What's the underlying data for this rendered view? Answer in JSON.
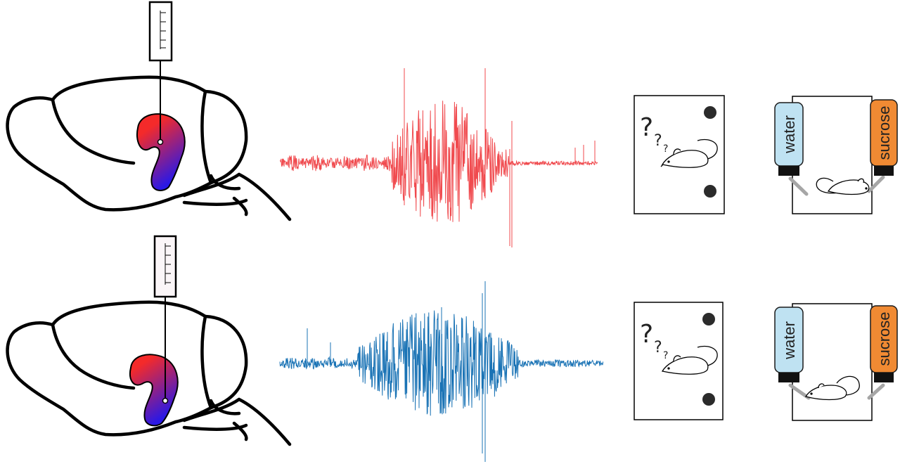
{
  "colors": {
    "outline": "#000000",
    "region_top": "#f42a2a",
    "region_bottom": "#2a18e6",
    "trace_top": "#f04a4e",
    "trace_bottom": "#1a73b5",
    "water_bottle": "#bfe2f2",
    "sucrose_bottle": "#f08a33",
    "cap": "#111111",
    "spout": "#a6a6a6",
    "well": "#2b2b2b"
  },
  "icons": [
    "brain-outline-icon",
    "electrode-icon",
    "mouse-icon",
    "question-mark-icon",
    "bottle-icon"
  ],
  "rows": [
    {
      "recording_site": "dorsal",
      "trace_color": "#f04a4e",
      "arena": {
        "question": "?",
        "wells": 2
      },
      "bottles": {
        "left": "water",
        "right": "sucrose"
      }
    },
    {
      "recording_site": "ventral",
      "trace_color": "#1a73b5",
      "arena": {
        "question": "?",
        "wells": 2
      },
      "bottles": {
        "left": "water",
        "right": "sucrose"
      }
    }
  ]
}
